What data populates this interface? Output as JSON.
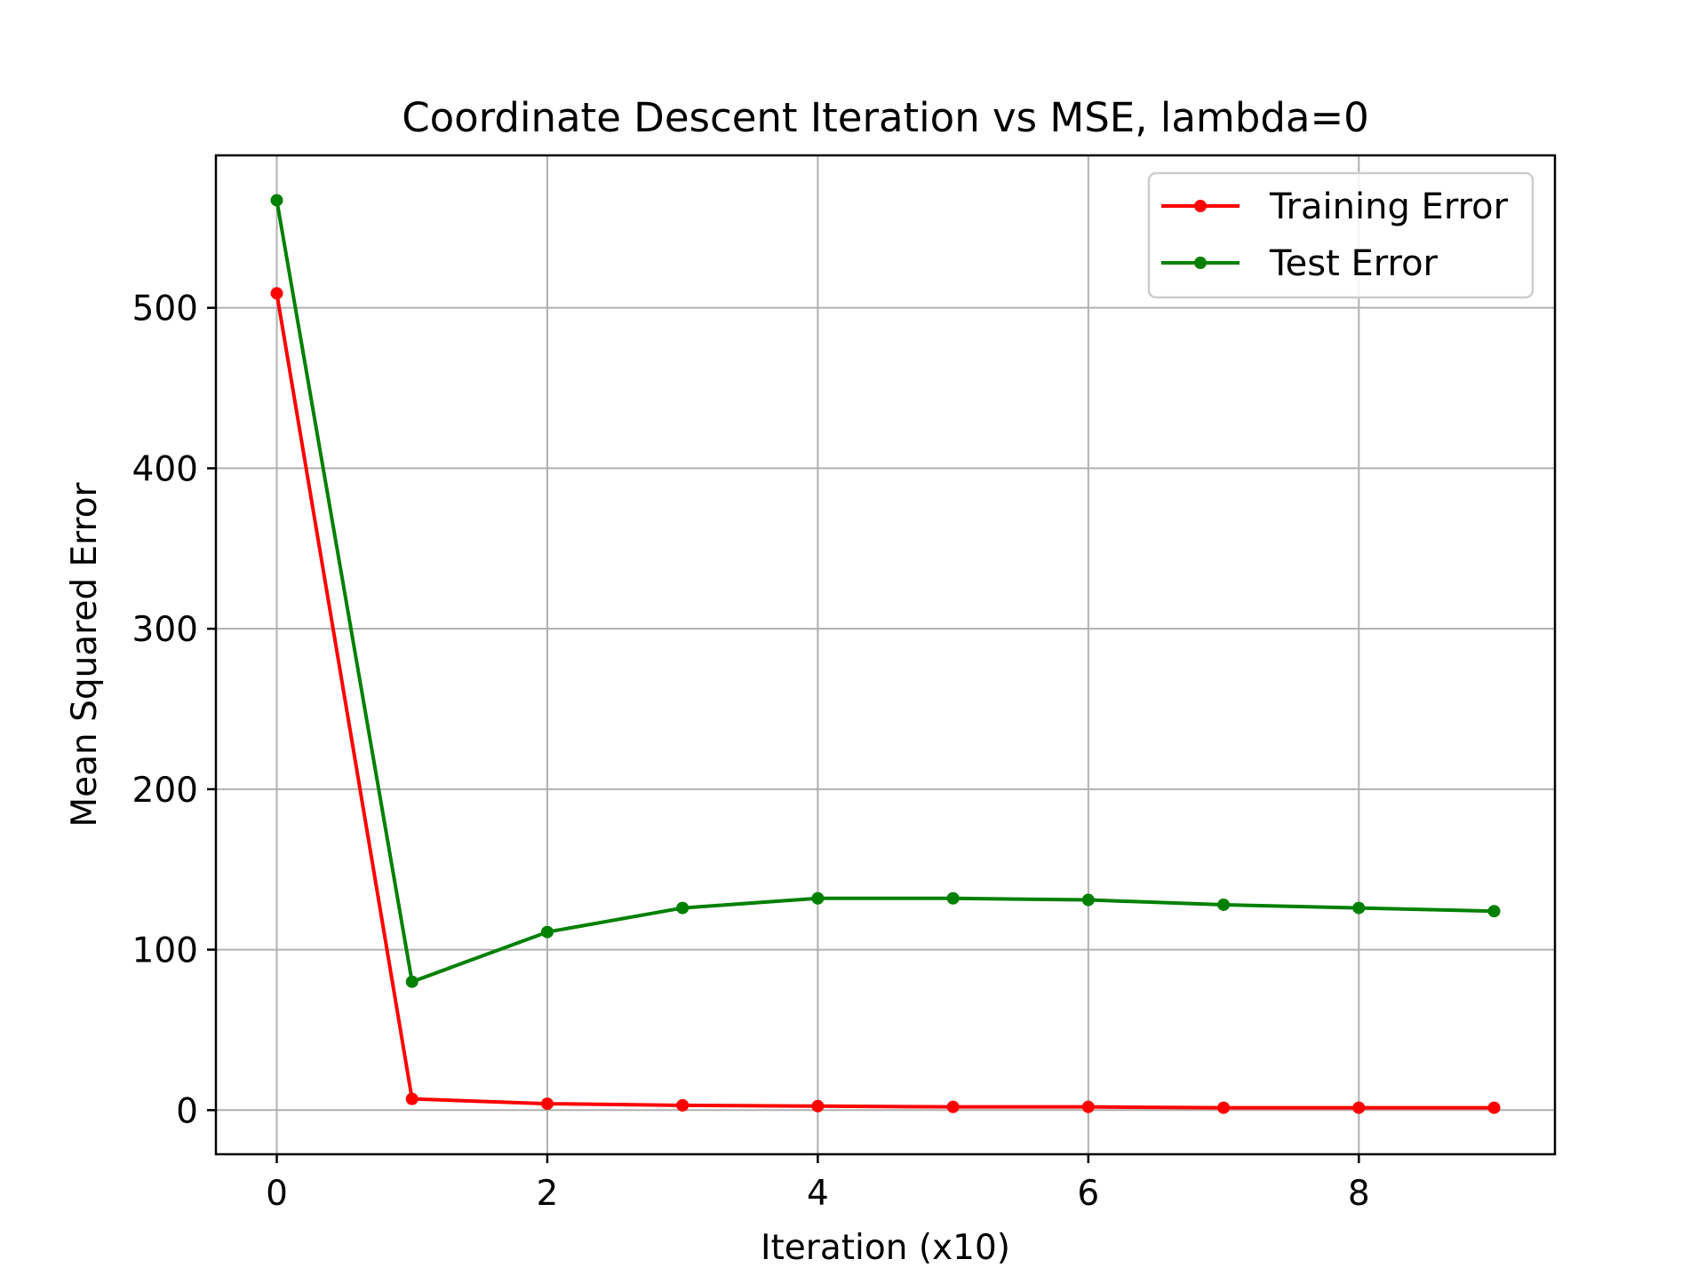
{
  "chart_data": {
    "type": "line",
    "title": "Coordinate Descent Iteration vs MSE, lambda=0",
    "xlabel": "Iteration (x10)",
    "ylabel": "Mean Squared Error",
    "x": [
      0,
      1,
      2,
      3,
      4,
      5,
      6,
      7,
      8,
      9
    ],
    "series": [
      {
        "name": "Training Error",
        "color": "#ff0000",
        "marker": "circle",
        "values": [
          509,
          7,
          4,
          3,
          2.5,
          2,
          2,
          1.5,
          1.5,
          1.5
        ]
      },
      {
        "name": "Test Error",
        "color": "#008000",
        "marker": "circle",
        "values": [
          567,
          80,
          111,
          126,
          132,
          132,
          131,
          128,
          126,
          124
        ]
      }
    ],
    "xlim": [
      -0.45,
      9.45
    ],
    "ylim": [
      -27.5,
      595
    ],
    "xticks": [
      0,
      2,
      4,
      6,
      8
    ],
    "yticks": [
      0,
      100,
      200,
      300,
      400,
      500
    ],
    "grid": true,
    "legend_position": "upper right"
  }
}
